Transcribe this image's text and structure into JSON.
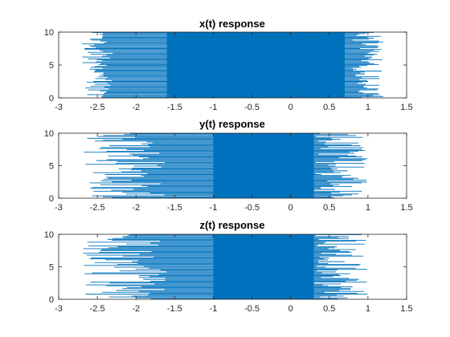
{
  "colors": {
    "line": "#0072BD",
    "axis": "#262626",
    "background": "#ffffff"
  },
  "chart_data": [
    {
      "type": "line",
      "title": "x(t) response",
      "xlabel": "",
      "ylabel": "",
      "xlim": [
        -3,
        1.5
      ],
      "ylim": [
        0,
        10
      ],
      "xticks": [
        -3,
        -2.5,
        -2,
        -1.5,
        -1,
        -0.5,
        0,
        0.5,
        1,
        1.5
      ],
      "yticks": [
        0,
        5,
        10
      ],
      "xtick_labels": [
        "-3",
        "-2.5",
        "-2",
        "-1.5",
        "-1",
        "-0.5",
        "0",
        "0.5",
        "1",
        "1.5"
      ],
      "ytick_labels": [
        "0",
        "5",
        "10"
      ],
      "grid": false,
      "series": [
        {
          "dense_x_range": [
            -1.6,
            0.7
          ],
          "left_tail_x": [
            -2.7,
            -2.3
          ],
          "right_tail_x": [
            0.8,
            1.2
          ],
          "y_range": [
            0,
            10
          ]
        }
      ]
    },
    {
      "type": "line",
      "title": "y(t) response",
      "xlabel": "",
      "ylabel": "",
      "xlim": [
        -3,
        1.5
      ],
      "ylim": [
        0,
        10
      ],
      "xticks": [
        -3,
        -2.5,
        -2,
        -1.5,
        -1,
        -0.5,
        0,
        0.5,
        1,
        1.5
      ],
      "yticks": [
        0,
        5,
        10
      ],
      "xtick_labels": [
        "-3",
        "-2.5",
        "-2",
        "-1.5",
        "-1",
        "-0.5",
        "0",
        "0.5",
        "1",
        "1.5"
      ],
      "ytick_labels": [
        "0",
        "5",
        "10"
      ],
      "grid": false,
      "series": [
        {
          "dense_x_range": [
            -1.0,
            0.3
          ],
          "left_tail_x": [
            -2.7,
            -1.6
          ],
          "right_tail_x": [
            0.3,
            1.0
          ],
          "y_range": [
            0,
            10
          ]
        }
      ]
    },
    {
      "type": "line",
      "title": "z(t) response",
      "xlabel": "",
      "ylabel": "",
      "xlim": [
        -3,
        1.5
      ],
      "ylim": [
        0,
        10
      ],
      "xticks": [
        -3,
        -2.5,
        -2,
        -1.5,
        -1,
        -0.5,
        0,
        0.5,
        1,
        1.5
      ],
      "yticks": [
        0,
        5,
        10
      ],
      "xtick_labels": [
        "-3",
        "-2.5",
        "-2",
        "-1.5",
        "-1",
        "-0.5",
        "0",
        "0.5",
        "1",
        "1.5"
      ],
      "ytick_labels": [
        "0",
        "5",
        "10"
      ],
      "grid": false,
      "series": [
        {
          "dense_x_range": [
            -1.0,
            0.3
          ],
          "left_tail_x": [
            -2.7,
            -1.6
          ],
          "right_tail_x": [
            0.3,
            1.0
          ],
          "y_range": [
            0,
            10
          ]
        }
      ]
    }
  ]
}
